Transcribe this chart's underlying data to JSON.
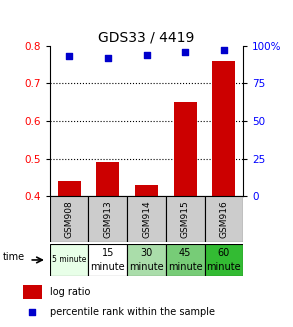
{
  "title": "GDS33 / 4419",
  "categories": [
    "GSM908",
    "GSM913",
    "GSM914",
    "GSM915",
    "GSM916"
  ],
  "time_labels_top": [
    "5 minute",
    "15",
    "30",
    "45",
    "60"
  ],
  "time_labels_bot": [
    "",
    "minute",
    "minute",
    "minute",
    "minute"
  ],
  "log_ratio": [
    0.44,
    0.49,
    0.43,
    0.65,
    0.76
  ],
  "percentile": [
    93,
    92,
    94,
    96,
    97
  ],
  "bar_color": "#cc0000",
  "dot_color": "#0000cc",
  "left_ylim": [
    0.4,
    0.8
  ],
  "right_ylim": [
    0,
    100
  ],
  "left_yticks": [
    0.4,
    0.5,
    0.6,
    0.7,
    0.8
  ],
  "right_yticks": [
    0,
    25,
    50,
    75,
    100
  ],
  "right_yticklabels": [
    "0",
    "25",
    "50",
    "75",
    "100%"
  ],
  "hline_values": [
    0.5,
    0.6,
    0.7
  ],
  "time_colors": [
    "#e8ffe8",
    "#ffffff",
    "#aaddaa",
    "#77cc77",
    "#33bb33"
  ],
  "gsm_bg_color": "#cccccc",
  "legend_items": [
    "log ratio",
    "percentile rank within the sample"
  ],
  "legend_colors": [
    "#cc0000",
    "#0000cc"
  ],
  "fig_width": 2.93,
  "fig_height": 3.27,
  "dpi": 100
}
